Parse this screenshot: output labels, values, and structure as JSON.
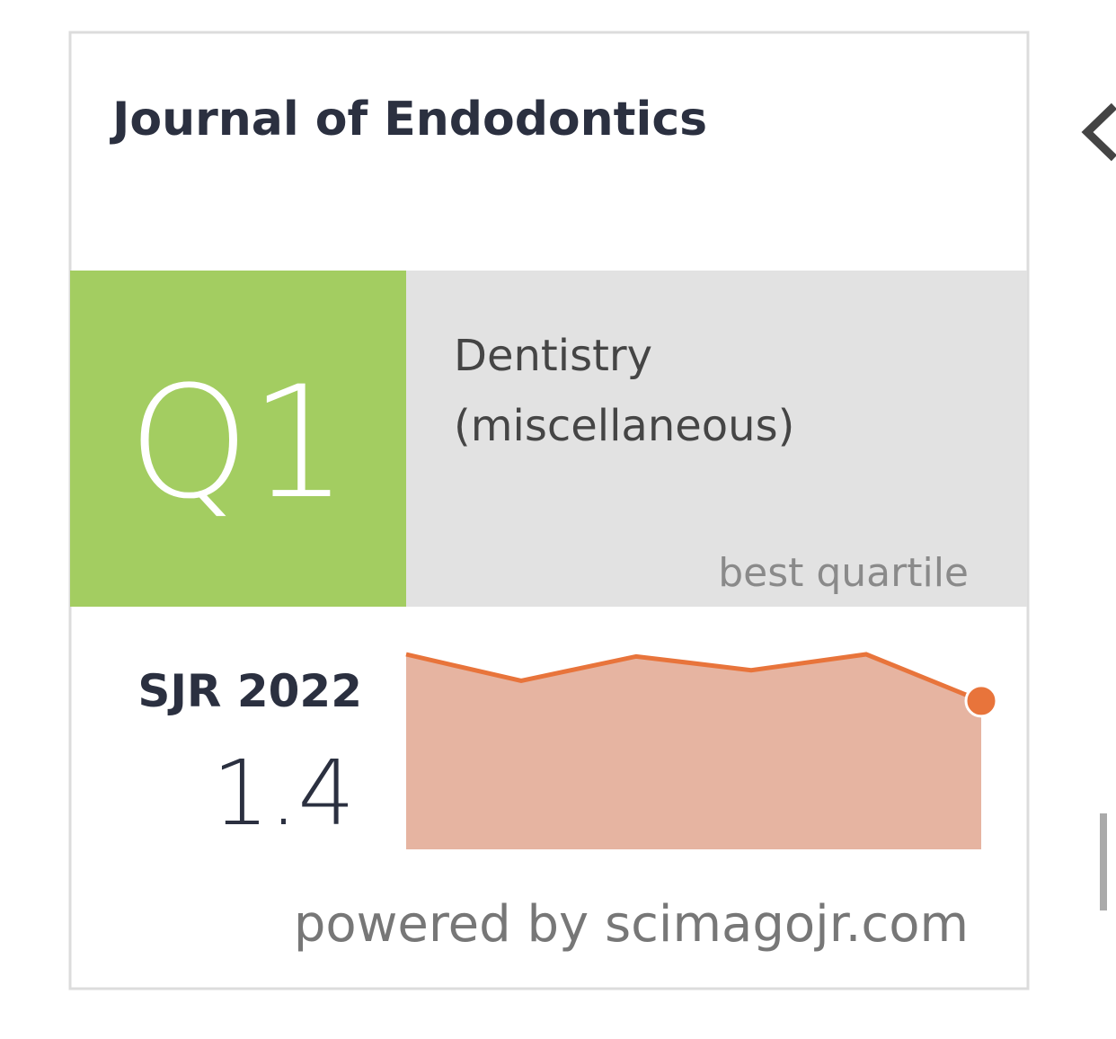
{
  "widget": {
    "title": "Journal of Endodontics",
    "quartile": "Q1",
    "category_line1": "Dentistry",
    "category_line2": "(miscellaneous)",
    "quartile_caption": "best quartile",
    "sjr_label": "SJR 2022",
    "sjr_value": "1.4",
    "footer": "powered by scimagojr.com",
    "sparkline": {
      "type": "area",
      "values": [
        1.84,
        1.59,
        1.82,
        1.69,
        1.84,
        1.4
      ],
      "color": "#e8743b",
      "fill": "#e6b4a1"
    }
  }
}
